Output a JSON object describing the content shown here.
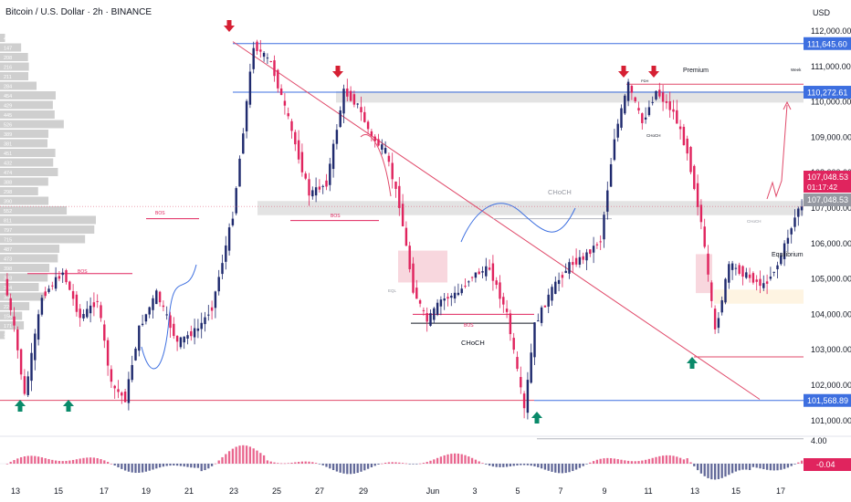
{
  "header": {
    "title": "Bitcoin / U.S. Dollar · 2h · BINANCE",
    "currency": "USD"
  },
  "colors": {
    "up": "#1f2a6e",
    "down": "#e0245e",
    "blue_line": "#3d6fe0",
    "red_line": "#e04a6a",
    "arrow_red": "#d61f33",
    "arrow_green": "#0a8a6a",
    "zone_gray": "#d9d9d9",
    "zone_pink": "#f5c9d3",
    "zone_yellow": "#fdf0d8"
  },
  "chart_data": {
    "type": "candlestick",
    "title": "Bitcoin / U.S. Dollar · 2h · BINANCE",
    "ylim": [
      100500,
      112500
    ],
    "y_ticks": [
      "112,000.00",
      "111,000.00",
      "110,000.00",
      "109,000.00",
      "108,000.00",
      "107,000.00",
      "106,000.00",
      "105,000.00",
      "104,000.00",
      "103,000.00",
      "102,000.00",
      "101,000.00"
    ],
    "x_ticks": [
      "13",
      "15",
      "17",
      "19",
      "21",
      "23",
      "25",
      "27",
      "29",
      "Jun",
      "3",
      "5",
      "7",
      "9",
      "11",
      "13",
      "15",
      "17"
    ],
    "price_path": [
      [
        0,
        105000
      ],
      [
        3,
        103600
      ],
      [
        6,
        101700
      ],
      [
        11,
        104500
      ],
      [
        17,
        105200
      ],
      [
        22,
        103900
      ],
      [
        27,
        104400
      ],
      [
        31,
        102000
      ],
      [
        35,
        101600
      ],
      [
        39,
        103600
      ],
      [
        44,
        104600
      ],
      [
        50,
        103200
      ],
      [
        56,
        103600
      ],
      [
        60,
        104200
      ],
      [
        66,
        106800
      ],
      [
        72,
        111600
      ],
      [
        77,
        111100
      ],
      [
        82,
        109500
      ],
      [
        88,
        107400
      ],
      [
        93,
        107700
      ],
      [
        98,
        110300
      ],
      [
        102,
        109900
      ],
      [
        106,
        109000
      ],
      [
        110,
        108600
      ],
      [
        114,
        107100
      ],
      [
        118,
        104700
      ],
      [
        122,
        103800
      ],
      [
        126,
        104400
      ],
      [
        131,
        104600
      ],
      [
        135,
        105100
      ],
      [
        140,
        105300
      ],
      [
        145,
        104000
      ],
      [
        150,
        101300
      ],
      [
        153,
        103700
      ],
      [
        158,
        104700
      ],
      [
        163,
        105400
      ],
      [
        167,
        105600
      ],
      [
        172,
        106100
      ],
      [
        176,
        109000
      ],
      [
        180,
        110500
      ],
      [
        184,
        109400
      ],
      [
        188,
        110300
      ],
      [
        193,
        109700
      ],
      [
        197,
        108600
      ],
      [
        201,
        106600
      ],
      [
        205,
        103500
      ],
      [
        209,
        105400
      ],
      [
        214,
        105100
      ],
      [
        219,
        104800
      ],
      [
        223,
        105400
      ],
      [
        226,
        106200
      ],
      [
        229,
        107000
      ]
    ],
    "levels": [
      {
        "label": "111,645.60",
        "value": 111645.6
      },
      {
        "label": "110,272.61",
        "value": 110272.61
      },
      {
        "label": "101,568.89",
        "value": 101568.89
      }
    ],
    "current_price": {
      "label": "107,048.53",
      "countdown": "01:17:42",
      "ref_label": "107,048.53",
      "value": 107048.53
    },
    "annotations": [
      "BOS",
      "BOS",
      "BOS",
      "BOS",
      "CHoCH",
      "CHoCH",
      "CHoCH",
      "CHoCH",
      "Premium",
      "Equilibrium",
      "Week",
      "EQL",
      "PDH"
    ],
    "volume_profile": [
      {
        "label": "4",
        "value": 4
      },
      {
        "label": "147",
        "value": 147
      },
      {
        "label": "208",
        "value": 208
      },
      {
        "label": "216",
        "value": 216
      },
      {
        "label": "211",
        "value": 211
      },
      {
        "label": "284",
        "value": 284
      },
      {
        "label": "454",
        "value": 454
      },
      {
        "label": "429",
        "value": 429
      },
      {
        "label": "445",
        "value": 445
      },
      {
        "label": "526",
        "value": 526
      },
      {
        "label": "389",
        "value": 389
      },
      {
        "label": "381",
        "value": 381
      },
      {
        "label": "451",
        "value": 451
      },
      {
        "label": "432",
        "value": 432
      },
      {
        "label": "474",
        "value": 474
      },
      {
        "label": "388",
        "value": 388
      },
      {
        "label": "298",
        "value": 298
      },
      {
        "label": "390",
        "value": 390
      },
      {
        "label": "552",
        "value": 552
      },
      {
        "label": "811",
        "value": 811
      },
      {
        "label": "797",
        "value": 797
      },
      {
        "label": "715",
        "value": 715
      },
      {
        "label": "487",
        "value": 487
      },
      {
        "label": "473",
        "value": 473
      },
      {
        "label": "398",
        "value": 398
      },
      {
        "label": "383",
        "value": 383
      },
      {
        "label": "304",
        "value": 304
      },
      {
        "label": "358",
        "value": 358
      },
      {
        "label": "220",
        "value": 220
      },
      {
        "label": "156",
        "value": 156
      },
      {
        "label": "171",
        "value": 171
      },
      {
        "label": "2",
        "value": 2
      }
    ],
    "oscillator": {
      "ticks": [
        "4.00",
        "-0.04"
      ],
      "current": "-0.04"
    }
  }
}
